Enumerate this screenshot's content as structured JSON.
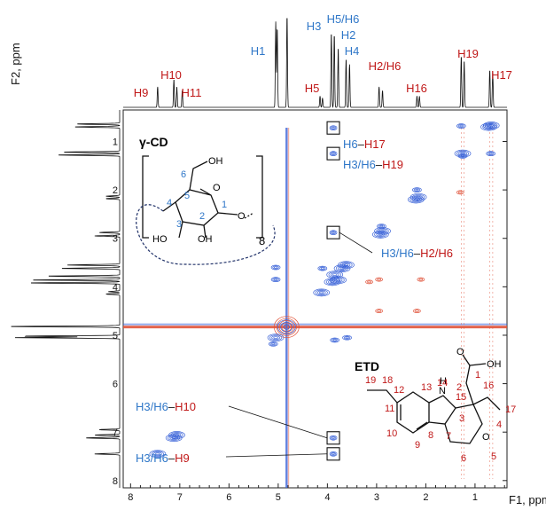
{
  "chart_data": {
    "type": "heatmap",
    "subtype": "2D NMR ROESY contour map",
    "xlabel": "F1, ppm",
    "ylabel": "F2, ppm",
    "xlim": [
      8.15,
      0.35
    ],
    "ylim": [
      0.35,
      8.15
    ],
    "x_ticks": [
      "8",
      "7",
      "6",
      "5",
      "4",
      "3",
      "2",
      "1"
    ],
    "y_ticks": [
      "1",
      "2",
      "3",
      "4",
      "5",
      "6",
      "7",
      "8"
    ],
    "colors": {
      "positive": "#e0533a",
      "negative": "#3a63d8",
      "host_label": "#2f77c8",
      "guest_label": "#c01818"
    },
    "top_projection_labels": [
      {
        "text": "H9",
        "ppm": 7.45,
        "group": "guest"
      },
      {
        "text": "H10",
        "ppm": 7.12,
        "group": "guest"
      },
      {
        "text": "H11",
        "ppm": 6.95,
        "group": "guest"
      },
      {
        "text": "H1",
        "ppm": 5.05,
        "group": "host"
      },
      {
        "text": "H3",
        "ppm": 3.92,
        "group": "host"
      },
      {
        "text": "H5/H6",
        "ppm": 3.78,
        "group": "host"
      },
      {
        "text": "H2",
        "ppm": 3.62,
        "group": "host"
      },
      {
        "text": "H4",
        "ppm": 3.55,
        "group": "host"
      },
      {
        "text": "H5",
        "ppm": 4.15,
        "group": "guest"
      },
      {
        "text": "H2/H6",
        "ppm": 2.92,
        "group": "guest"
      },
      {
        "text": "H16",
        "ppm": 2.15,
        "group": "guest"
      },
      {
        "text": "H19",
        "ppm": 1.25,
        "group": "guest"
      },
      {
        "text": "H17",
        "ppm": 0.65,
        "group": "guest"
      }
    ],
    "cross_peaks": [
      {
        "host": "H3/H6",
        "guest": "H9",
        "x": 3.88,
        "y": 7.45
      },
      {
        "host": "H3/H6",
        "guest": "H10",
        "x": 3.88,
        "y": 7.12
      },
      {
        "host": "H6",
        "guest": "H17",
        "x": 3.88,
        "y": 0.72
      },
      {
        "host": "H3/H6",
        "guest": "H19",
        "x": 3.88,
        "y": 1.25
      },
      {
        "host": "H3/H6",
        "guest": "H2/H6",
        "x": 3.88,
        "y": 2.88
      }
    ],
    "annotations": {
      "host_name": "γ-CD",
      "guest_name": "ETD",
      "host_repeat": "8",
      "host_groups": [
        "OH",
        "HO",
        "OH",
        "O",
        "O"
      ],
      "host_numbers": [
        "1",
        "2",
        "3",
        "4",
        "5",
        "6"
      ],
      "guest_groups": [
        "N",
        "H",
        "O",
        "OH",
        "O"
      ],
      "guest_numbers": [
        "1",
        "2",
        "3",
        "4",
        "5",
        "6",
        "7",
        "8",
        "9",
        "10",
        "11",
        "12",
        "13",
        "14",
        "15",
        "16",
        "17",
        "18",
        "19"
      ]
    }
  }
}
